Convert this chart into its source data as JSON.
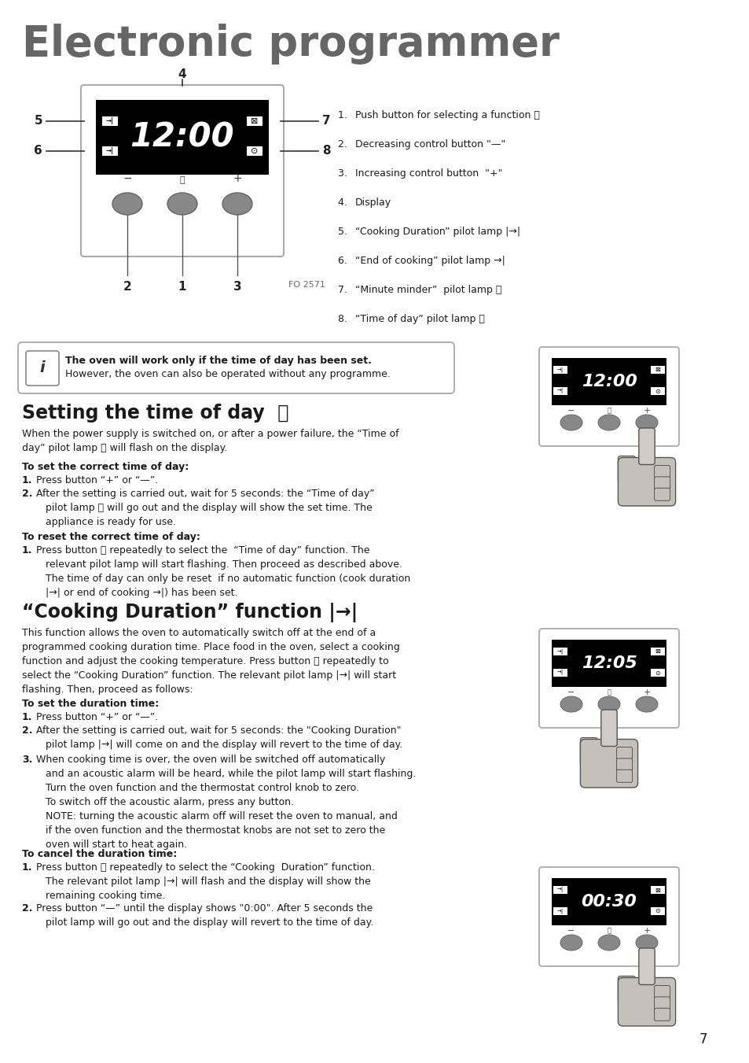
{
  "bg_color": "#ffffff",
  "main_title": "Electronic programmer",
  "page_number": "7",
  "display1_time": "12:00",
  "display2_time": "12:05",
  "display3_time": "00:30",
  "numbered_items": [
    [
      "Push button for selecting a function ",
      "ⓡ"
    ],
    [
      "Decreasing control button \"—\"",
      ""
    ],
    [
      "Increasing control button  \"+\"",
      ""
    ],
    [
      "Display",
      ""
    ],
    [
      "“Cooking Duration” pilot lamp |→|",
      ""
    ],
    [
      "“End of cooking” pilot lamp →|",
      ""
    ],
    [
      "“Minute minder”  pilot lamp ",
      "⧖"
    ],
    [
      "“Time of day” pilot lamp ",
      "⌚"
    ]
  ],
  "info_bold": "The oven will work only if the time of day has been set.",
  "info_normal": "However, the oven can also be operated without any programme."
}
